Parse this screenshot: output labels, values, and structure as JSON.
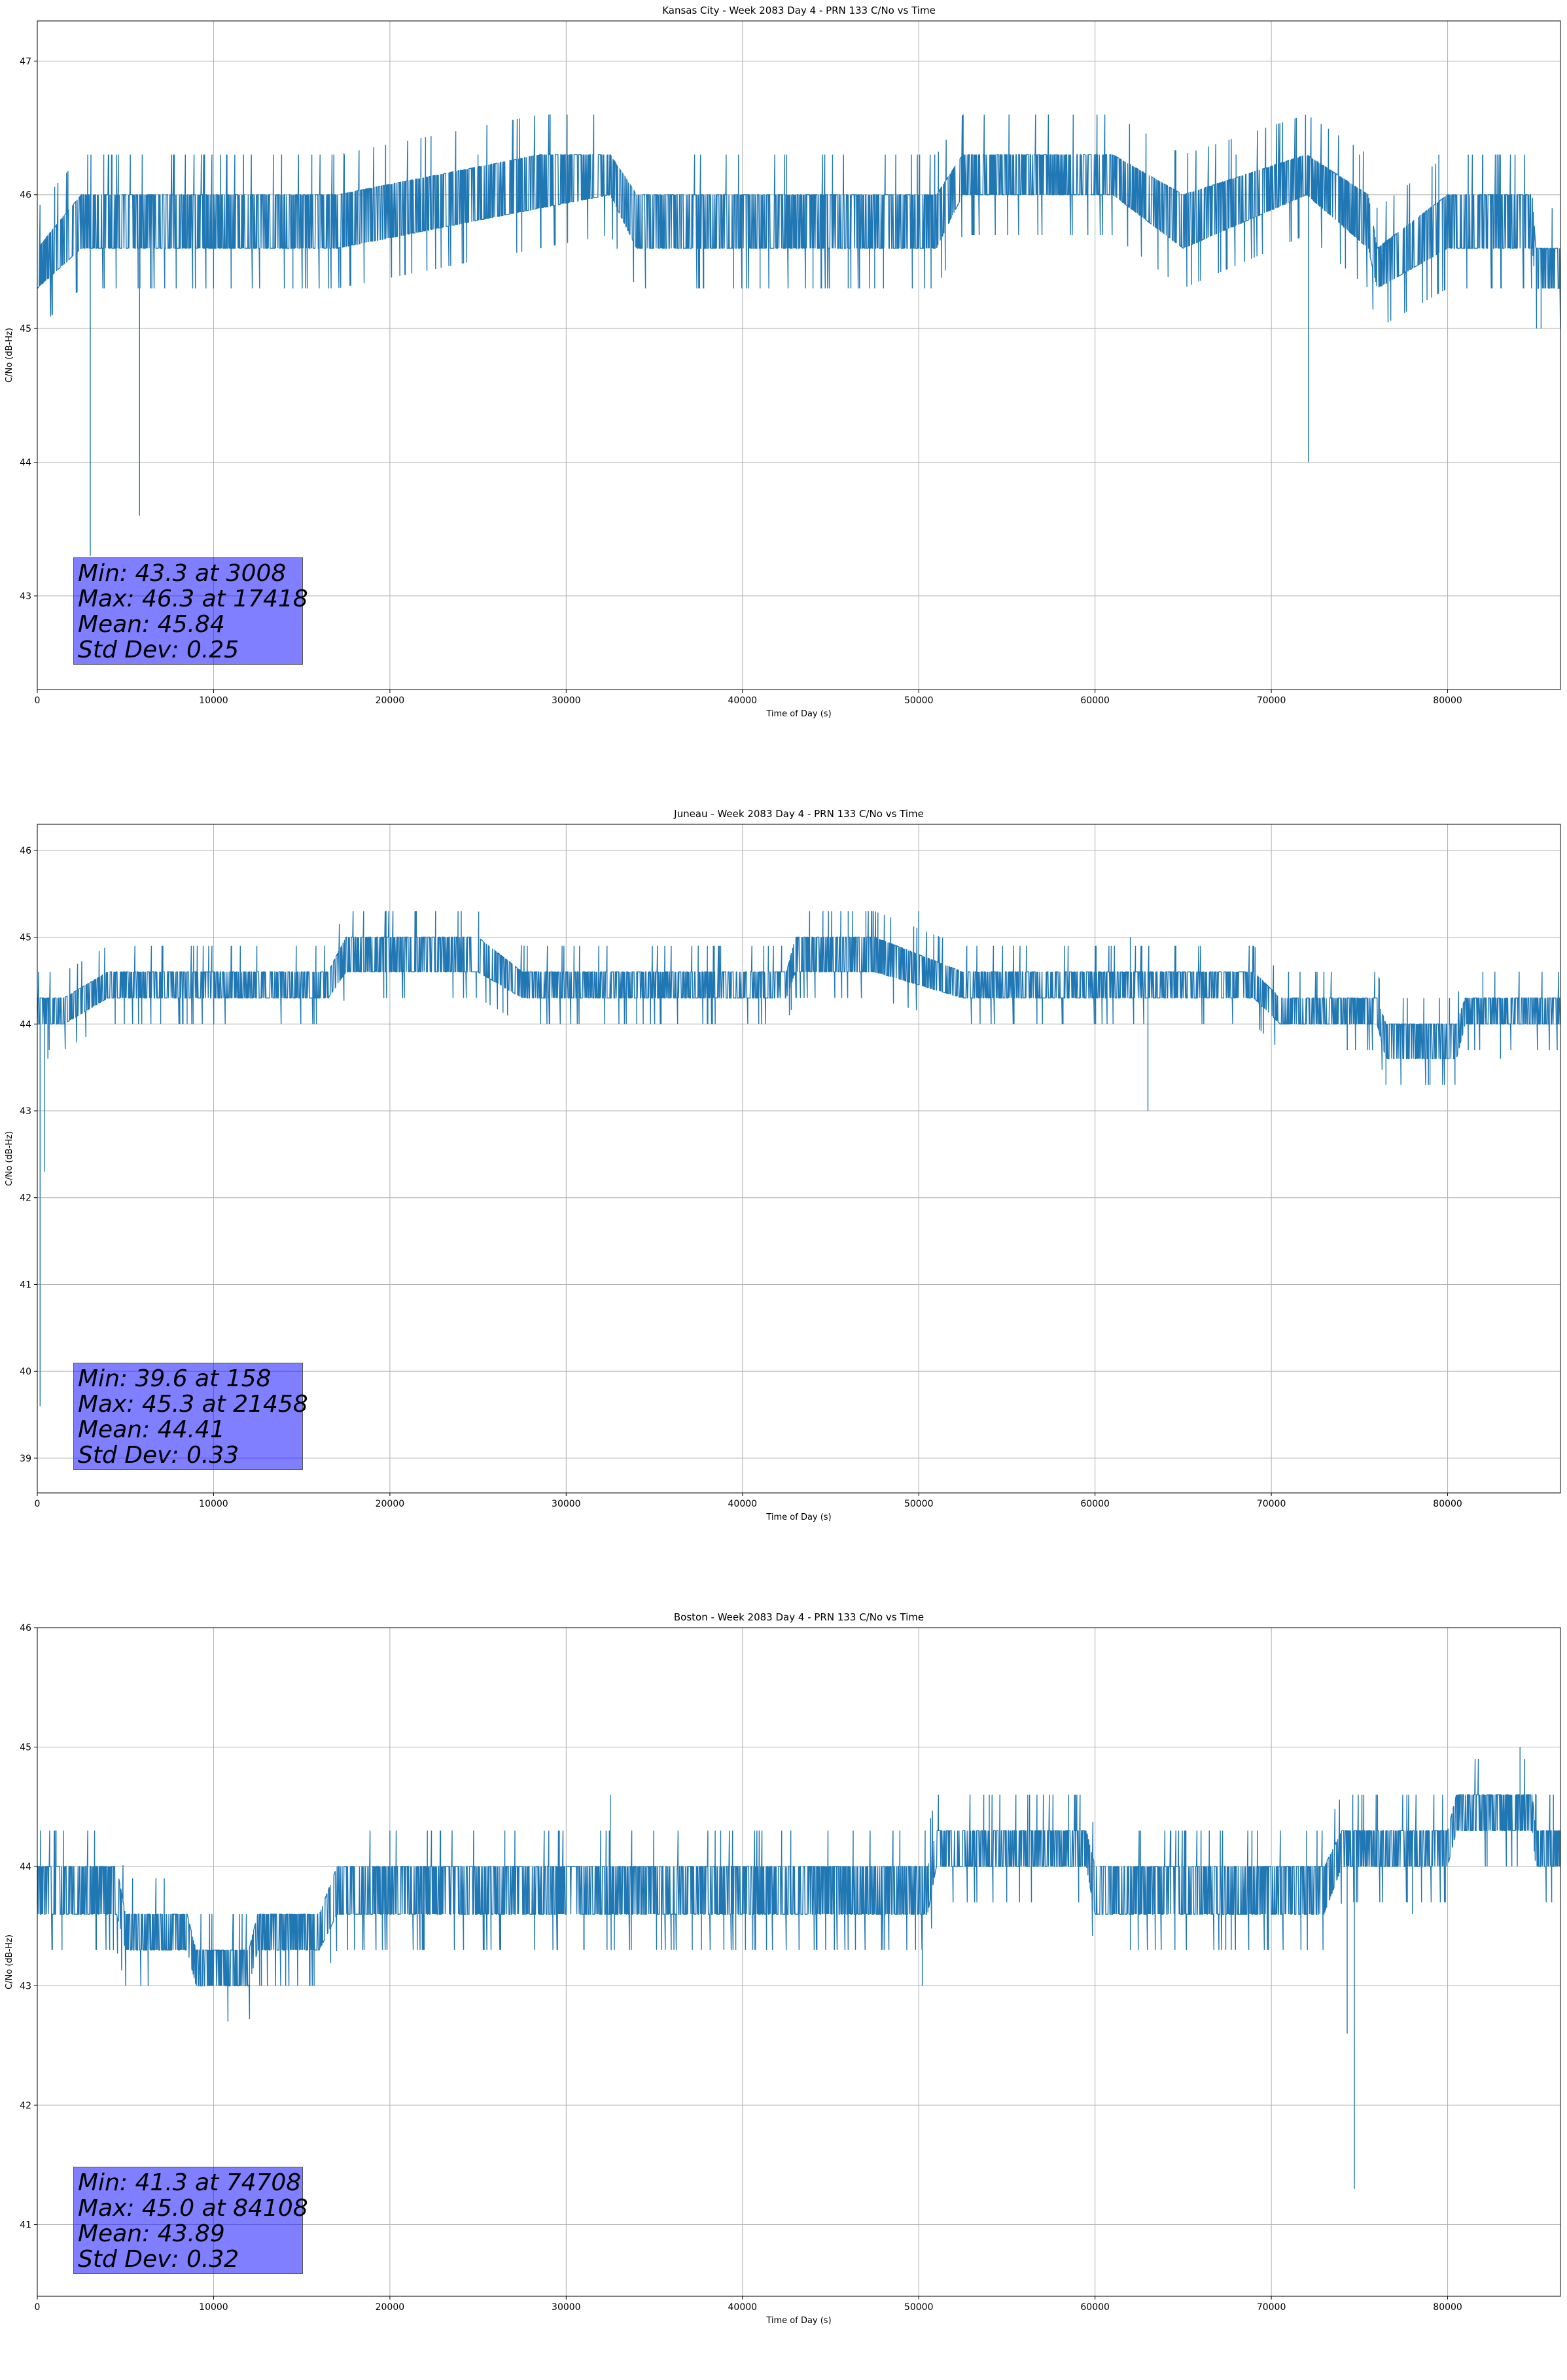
{
  "charts": [
    {
      "stats": {
        "min": "Min: 43.3 at 3008",
        "max": "Max: 46.3 at 17418",
        "mean": "Mean: 45.84",
        "std": "Std Dev: 0.25"
      }
    },
    {
      "stats": {
        "min": "Min: 39.6 at 158",
        "max": "Max: 45.3 at 21458",
        "mean": "Mean: 44.41",
        "std": "Std Dev: 0.33"
      }
    },
    {
      "stats": {
        "min": "Min: 41.3 at 74708",
        "max": "Max: 45.0 at 84108",
        "mean": "Mean: 43.89",
        "std": "Std Dev: 0.32"
      }
    }
  ],
  "chart_data": [
    {
      "type": "line",
      "title": "Kansas City - Week 2083 Day 4 - PRN 133 C/No vs Time",
      "xlabel": "Time of Day (s)",
      "ylabel": "C/No (dB-Hz)",
      "xlim": [
        0,
        86400
      ],
      "ylim": [
        42.3,
        47.3
      ],
      "xticks": [
        0,
        10000,
        20000,
        30000,
        40000,
        50000,
        60000,
        70000,
        80000
      ],
      "yticks": [
        43,
        44,
        45,
        46,
        47
      ],
      "grid": true,
      "color": "#1f77b4",
      "series": [
        {
          "band": [
            [
              0,
              45.3,
              45.6
            ],
            [
              2500,
              45.6,
              46.0
            ],
            [
              15000,
              45.6,
              46.0
            ],
            [
              17000,
              45.6,
              46.0
            ],
            [
              28500,
              45.9,
              46.3
            ],
            [
              32500,
              46.0,
              46.3
            ],
            [
              34000,
              45.6,
              46.0
            ],
            [
              51000,
              45.6,
              46.0
            ],
            [
              52500,
              46.0,
              46.3
            ],
            [
              61000,
              46.0,
              46.3
            ],
            [
              65000,
              45.6,
              46.0
            ],
            [
              72000,
              46.0,
              46.3
            ],
            [
              75500,
              45.6,
              46.0
            ],
            [
              76000,
              45.3,
              45.6
            ],
            [
              80000,
              45.6,
              46.0
            ],
            [
              84800,
              45.6,
              46.0
            ],
            [
              85000,
              45.3,
              45.6
            ],
            [
              86400,
              45.3,
              45.6
            ]
          ],
          "spikes": [
            [
              3008,
              43.3
            ],
            [
              5800,
              43.6
            ],
            [
              72100,
              44.0
            ],
            [
              85300,
              45.0
            ],
            [
              17418,
              46.3
            ],
            [
              25000,
              46.3
            ],
            [
              42500,
              46.3
            ],
            [
              44000,
              45.3
            ],
            [
              48000,
              45.3
            ],
            [
              55000,
              46.3
            ],
            [
              68000,
              46.3
            ],
            [
              79500,
              46.3
            ],
            [
              82000,
              46.3
            ],
            [
              14500,
              45.3
            ],
            [
              10000,
              45.3
            ],
            [
              6500,
              45.3
            ],
            [
              39500,
              45.3
            ],
            [
              41000,
              45.3
            ],
            [
              46000,
              45.3
            ],
            [
              47500,
              45.3
            ],
            [
              75000,
              46.3
            ]
          ]
        }
      ]
    },
    {
      "type": "line",
      "title": "Juneau - Week 2083 Day 4 - PRN 133 C/No vs Time",
      "xlabel": "Time of Day (s)",
      "ylabel": "C/No (dB-Hz)",
      "xlim": [
        0,
        86400
      ],
      "ylim": [
        38.6,
        46.3
      ],
      "xticks": [
        0,
        10000,
        20000,
        30000,
        40000,
        50000,
        60000,
        70000,
        80000
      ],
      "yticks": [
        39,
        40,
        41,
        42,
        43,
        44,
        45,
        46
      ],
      "grid": true,
      "color": "#1f77b4",
      "series": [
        {
          "band": [
            [
              0,
              44.0,
              44.3
            ],
            [
              1500,
              44.0,
              44.3
            ],
            [
              4000,
              44.3,
              44.6
            ],
            [
              16500,
              44.3,
              44.6
            ],
            [
              17500,
              44.6,
              45.0
            ],
            [
              25000,
              44.6,
              45.0
            ],
            [
              27500,
              44.3,
              44.6
            ],
            [
              42500,
              44.3,
              44.6
            ],
            [
              43000,
              44.6,
              45.0
            ],
            [
              46000,
              44.6,
              45.0
            ],
            [
              47500,
              44.6,
              45.0
            ],
            [
              52500,
              44.3,
              44.6
            ],
            [
              69000,
              44.3,
              44.6
            ],
            [
              70500,
              44.0,
              44.3
            ],
            [
              76000,
              44.0,
              44.3
            ],
            [
              76500,
              43.6,
              44.0
            ],
            [
              80500,
              43.6,
              44.0
            ],
            [
              81000,
              44.0,
              44.3
            ],
            [
              86400,
              44.0,
              44.3
            ]
          ],
          "spikes": [
            [
              158,
              39.6
            ],
            [
              400,
              42.3
            ],
            [
              600,
              43.6
            ],
            [
              63000,
              43.0
            ],
            [
              21458,
              45.3
            ],
            [
              46000,
              45.3
            ],
            [
              47000,
              45.3
            ],
            [
              50000,
              45.3
            ],
            [
              62000,
              45.0
            ],
            [
              82000,
              44.6
            ],
            [
              79000,
              43.3
            ],
            [
              83000,
              43.6
            ],
            [
              76500,
              43.3
            ],
            [
              8500,
              44.0
            ],
            [
              34000,
              44.0
            ],
            [
              38000,
              44.0
            ],
            [
              7000,
              44.0
            ]
          ]
        }
      ]
    },
    {
      "type": "line",
      "title": "Boston - Week 2083 Day 4 - PRN 133 C/No vs Time",
      "xlabel": "Time of Day (s)",
      "ylabel": "C/No (dB-Hz)",
      "xlim": [
        0,
        86400
      ],
      "ylim": [
        40.4,
        46.0
      ],
      "xticks": [
        0,
        10000,
        20000,
        30000,
        40000,
        50000,
        60000,
        70000,
        80000
      ],
      "yticks": [
        41,
        42,
        43,
        44,
        45,
        46
      ],
      "grid": true,
      "color": "#1f77b4",
      "series": [
        {
          "band": [
            [
              0,
              43.6,
              44.0
            ],
            [
              4500,
              43.6,
              44.0
            ],
            [
              5000,
              43.3,
              43.6
            ],
            [
              8500,
              43.3,
              43.6
            ],
            [
              9000,
              43.0,
              43.3
            ],
            [
              12000,
              43.0,
              43.3
            ],
            [
              12500,
              43.3,
              43.6
            ],
            [
              16000,
              43.3,
              43.6
            ],
            [
              17000,
              43.6,
              44.0
            ],
            [
              50500,
              43.6,
              44.0
            ],
            [
              51000,
              44.0,
              44.3
            ],
            [
              59500,
              44.0,
              44.3
            ],
            [
              60000,
              43.6,
              44.0
            ],
            [
              73000,
              43.6,
              44.0
            ],
            [
              74000,
              44.0,
              44.3
            ],
            [
              80000,
              44.0,
              44.3
            ],
            [
              80500,
              44.3,
              44.6
            ],
            [
              84800,
              44.3,
              44.6
            ],
            [
              85000,
              44.0,
              44.3
            ],
            [
              86400,
              44.0,
              44.3
            ]
          ],
          "spikes": [
            [
              74708,
              41.3
            ],
            [
              74300,
              42.6
            ],
            [
              84108,
              45.0
            ],
            [
              50200,
              43.0
            ],
            [
              32500,
              44.6
            ],
            [
              54000,
              44.6
            ],
            [
              58500,
              44.6
            ],
            [
              83000,
              44.6
            ],
            [
              86000,
              44.6
            ],
            [
              1000,
              44.3
            ],
            [
              20000,
              44.3
            ],
            [
              26000,
              43.6
            ],
            [
              41500,
              43.6
            ],
            [
              62000,
              43.3
            ],
            [
              78000,
              43.6
            ],
            [
              31000,
              43.3
            ],
            [
              72000,
              44.3
            ]
          ]
        }
      ]
    }
  ]
}
